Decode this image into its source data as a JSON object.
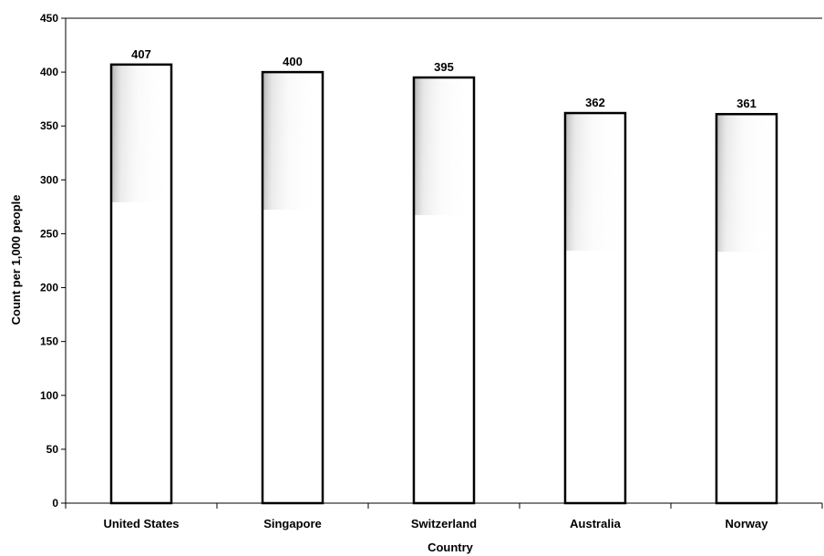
{
  "chart_data": {
    "type": "bar",
    "title": "",
    "xlabel": "Country",
    "ylabel": "Count per 1,000 people",
    "ylim": [
      0,
      450
    ],
    "yticks": [
      0,
      50,
      100,
      150,
      200,
      250,
      300,
      350,
      400,
      450
    ],
    "categories": [
      "United States",
      "Singapore",
      "Switzerland",
      "Australia",
      "Norway"
    ],
    "values": [
      407,
      400,
      395,
      362,
      361
    ],
    "data_labels": [
      "407",
      "400",
      "395",
      "362",
      "361"
    ],
    "grid": false,
    "legend": "none",
    "colors": {
      "bar_fill": "#ffffff",
      "bar_stroke": "#000000",
      "bar_shade": "#9a9a9a"
    }
  }
}
